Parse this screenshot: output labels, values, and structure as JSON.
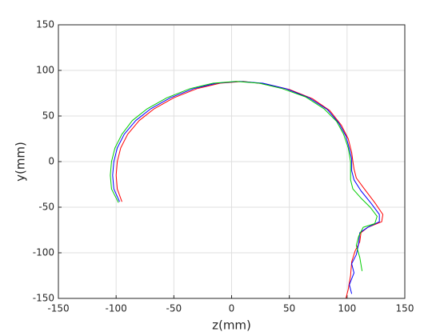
{
  "chart_data": {
    "type": "line",
    "xlabel": "z(mm)",
    "ylabel": "y(mm)",
    "xlim": [
      -150,
      150
    ],
    "ylim": [
      -150,
      150
    ],
    "xticks": [
      -150,
      -100,
      -50,
      0,
      50,
      100,
      150
    ],
    "yticks": [
      -150,
      -100,
      -50,
      0,
      50,
      100,
      150
    ],
    "grid": true,
    "series": [
      {
        "color": "#ff0000",
        "x": [
          -95,
          -99,
          -100,
          -99,
          -96,
          -90,
          -80,
          -67,
          -50,
          -30,
          -10,
          10,
          30,
          50,
          70,
          85,
          95,
          101,
          104,
          105,
          106,
          108,
          115,
          124,
          131,
          130,
          118,
          112,
          111,
          107,
          104,
          103,
          101,
          99
        ],
        "values": [
          -44,
          -30,
          -15,
          0,
          15,
          30,
          45,
          58,
          70,
          80,
          86,
          88,
          85,
          79,
          69,
          56,
          40,
          25,
          10,
          0,
          -8,
          -18,
          -30,
          -45,
          -58,
          -66,
          -72,
          -78,
          -88,
          -98,
          -110,
          -125,
          -140,
          -150
        ]
      },
      {
        "color": "#0000ff",
        "x": [
          -97,
          -102,
          -103,
          -102,
          -99,
          -93,
          -83,
          -70,
          -53,
          -33,
          -13,
          7,
          27,
          47,
          67,
          83,
          93,
          99,
          102,
          104,
          104,
          106,
          112,
          121,
          128,
          128,
          118,
          111,
          110,
          108,
          104,
          106,
          102,
          104
        ],
        "values": [
          -44,
          -30,
          -15,
          0,
          15,
          30,
          45,
          58,
          70,
          80,
          86,
          88,
          86,
          80,
          70,
          57,
          42,
          28,
          14,
          3,
          -10,
          -20,
          -32,
          -46,
          -58,
          -66,
          -72,
          -78,
          -90,
          -102,
          -112,
          -122,
          -135,
          -145
        ]
      },
      {
        "color": "#00cc00",
        "x": [
          -98,
          -104,
          -105,
          -104,
          -101,
          -95,
          -86,
          -73,
          -56,
          -36,
          -16,
          4,
          24,
          44,
          64,
          80,
          91,
          97,
          101,
          103,
          103,
          105,
          112,
          120,
          126,
          124,
          114,
          110,
          108,
          111,
          113
        ],
        "values": [
          -45,
          -30,
          -15,
          0,
          15,
          30,
          45,
          58,
          70,
          80,
          86,
          88,
          86,
          80,
          71,
          58,
          44,
          30,
          15,
          0,
          -20,
          -30,
          -40,
          -50,
          -60,
          -68,
          -72,
          -82,
          -92,
          -105,
          -120
        ]
      }
    ]
  }
}
